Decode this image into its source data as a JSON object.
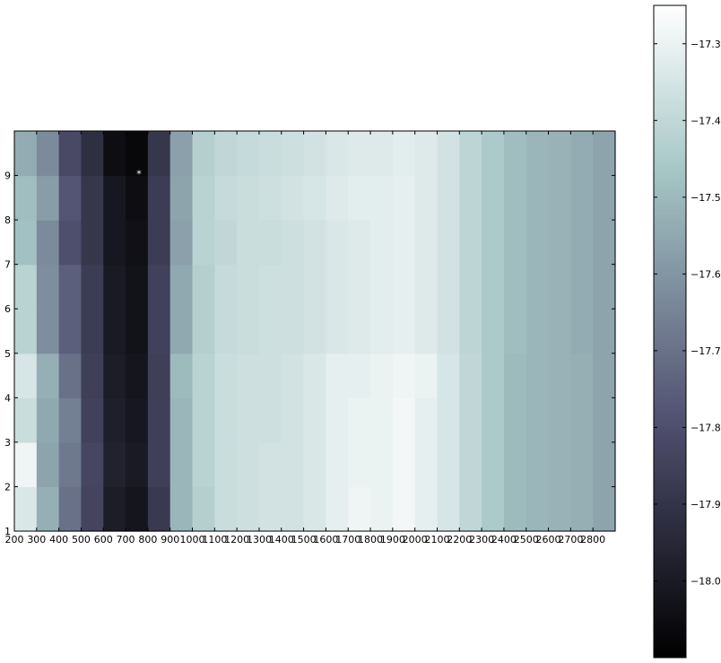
{
  "chart_data": {
    "type": "heatmap",
    "title": "",
    "xlabel": "",
    "ylabel": "",
    "x_tick_labels": [
      "200",
      "300",
      "400",
      "500",
      "600",
      "700",
      "800",
      "900",
      "1000",
      "1100",
      "1200",
      "1300",
      "1400",
      "1500",
      "1600",
      "1700",
      "1800",
      "1900",
      "2000",
      "2100",
      "2200",
      "2300",
      "2400",
      "2500",
      "2600",
      "2700",
      "2800"
    ],
    "y_tick_labels": [
      "1",
      "2",
      "3",
      "4",
      "5",
      "6",
      "7",
      "8",
      "9"
    ],
    "x_columns": [
      200,
      300,
      400,
      500,
      600,
      700,
      800,
      900,
      1000,
      1100,
      1200,
      1300,
      1400,
      1500,
      1600,
      1700,
      1800,
      1900,
      2000,
      2100,
      2200,
      2300,
      2400,
      2500,
      2600,
      2700,
      2800
    ],
    "y_rows": [
      1,
      2,
      3,
      4,
      5,
      6,
      7,
      8,
      9
    ],
    "values": [
      [
        -17.34,
        -17.53,
        -17.7,
        -17.84,
        -17.99,
        -18.02,
        -17.88,
        -17.51,
        -17.43,
        -17.38,
        -17.37,
        -17.36,
        -17.36,
        -17.34,
        -17.31,
        -17.29,
        -17.3,
        -17.28,
        -17.31,
        -17.35,
        -17.4,
        -17.45,
        -17.5,
        -17.51,
        -17.52,
        -17.53,
        -17.56
      ],
      [
        -17.29,
        -17.56,
        -17.68,
        -17.83,
        -17.97,
        -18.0,
        -17.86,
        -17.51,
        -17.42,
        -17.38,
        -17.37,
        -17.36,
        -17.36,
        -17.34,
        -17.31,
        -17.3,
        -17.3,
        -17.28,
        -17.31,
        -17.35,
        -17.4,
        -17.45,
        -17.5,
        -17.51,
        -17.52,
        -17.53,
        -17.56
      ],
      [
        -17.38,
        -17.55,
        -17.66,
        -17.85,
        -17.98,
        -18.01,
        -17.86,
        -17.51,
        -17.42,
        -17.38,
        -17.37,
        -17.37,
        -17.36,
        -17.34,
        -17.31,
        -17.3,
        -17.3,
        -17.28,
        -17.31,
        -17.35,
        -17.4,
        -17.45,
        -17.5,
        -17.51,
        -17.52,
        -17.53,
        -17.56
      ],
      [
        -17.35,
        -17.53,
        -17.7,
        -17.86,
        -17.99,
        -18.02,
        -17.86,
        -17.5,
        -17.42,
        -17.38,
        -17.37,
        -17.37,
        -17.36,
        -17.34,
        -17.31,
        -17.31,
        -17.3,
        -17.29,
        -17.3,
        -17.35,
        -17.4,
        -17.45,
        -17.5,
        -17.51,
        -17.52,
        -17.53,
        -17.56
      ],
      [
        -17.42,
        -17.62,
        -17.75,
        -17.87,
        -18.0,
        -18.03,
        -17.85,
        -17.55,
        -17.43,
        -17.39,
        -17.38,
        -17.37,
        -17.37,
        -17.36,
        -17.34,
        -17.33,
        -17.32,
        -17.31,
        -17.33,
        -17.36,
        -17.41,
        -17.45,
        -17.49,
        -17.51,
        -17.52,
        -17.54,
        -17.56
      ],
      [
        -17.42,
        -17.62,
        -17.75,
        -17.87,
        -18.0,
        -18.03,
        -17.85,
        -17.55,
        -17.43,
        -17.39,
        -17.38,
        -17.37,
        -17.37,
        -17.36,
        -17.34,
        -17.33,
        -17.32,
        -17.31,
        -17.33,
        -17.36,
        -17.41,
        -17.45,
        -17.49,
        -17.51,
        -17.52,
        -17.54,
        -17.56
      ],
      [
        -17.48,
        -17.63,
        -17.8,
        -17.89,
        -18.01,
        -18.04,
        -17.87,
        -17.57,
        -17.42,
        -17.4,
        -17.38,
        -17.38,
        -17.37,
        -17.36,
        -17.34,
        -17.33,
        -17.32,
        -17.31,
        -17.33,
        -17.36,
        -17.41,
        -17.45,
        -17.49,
        -17.51,
        -17.52,
        -17.54,
        -17.56
      ],
      [
        -17.49,
        -17.58,
        -17.78,
        -17.89,
        -18.01,
        -18.05,
        -17.87,
        -17.56,
        -17.42,
        -17.39,
        -17.38,
        -17.37,
        -17.36,
        -17.35,
        -17.33,
        -17.32,
        -17.32,
        -17.31,
        -17.33,
        -17.36,
        -17.41,
        -17.45,
        -17.49,
        -17.51,
        -17.52,
        -17.54,
        -17.56
      ],
      [
        -17.54,
        -17.63,
        -17.82,
        -17.92,
        -18.05,
        -18.07,
        -17.89,
        -17.57,
        -17.43,
        -17.4,
        -17.39,
        -17.38,
        -17.37,
        -17.36,
        -17.34,
        -17.33,
        -17.33,
        -17.32,
        -17.33,
        -17.36,
        -17.41,
        -17.45,
        -17.49,
        -17.51,
        -17.52,
        -17.54,
        -17.56
      ]
    ],
    "marker": {
      "text": "*",
      "x": 700,
      "y": 9
    },
    "colormap": "bone",
    "vmin": -18.1,
    "vmax": -17.25,
    "colorbar_ticks": [
      {
        "value": -17.3,
        "label": "−17.3"
      },
      {
        "value": -17.4,
        "label": "−17.4"
      },
      {
        "value": -17.5,
        "label": "−17.5"
      },
      {
        "value": -17.6,
        "label": "−17.6"
      },
      {
        "value": -17.7,
        "label": "−17.7"
      },
      {
        "value": -17.8,
        "label": "−17.8"
      },
      {
        "value": -17.9,
        "label": "−17.9"
      },
      {
        "value": -18.0,
        "label": "−18.0"
      }
    ],
    "legend": "none",
    "grid": false
  }
}
